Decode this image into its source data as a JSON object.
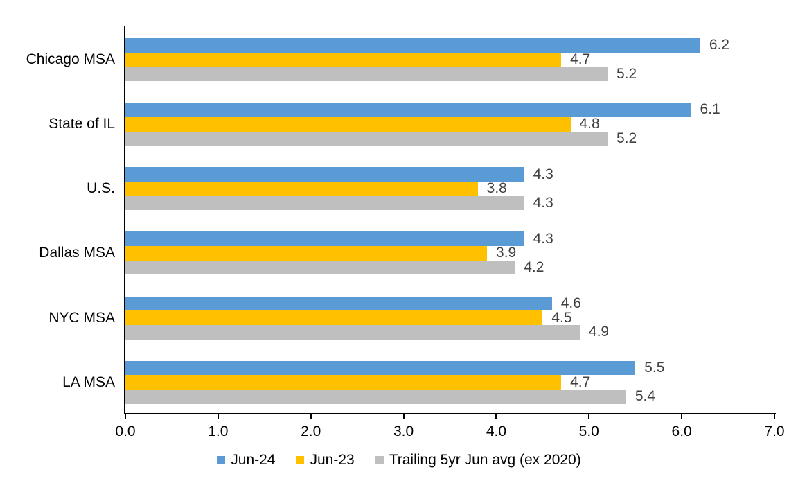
{
  "chart_data": {
    "type": "bar",
    "orientation": "horizontal",
    "title": "",
    "xlabel": "",
    "ylabel": "",
    "grid": false,
    "legend_position": "bottom",
    "data_labels": true,
    "xlim": [
      0.0,
      7.0
    ],
    "x_ticks": [
      "0.0",
      "1.0",
      "2.0",
      "3.0",
      "4.0",
      "5.0",
      "6.0",
      "7.0"
    ],
    "categories": [
      "Chicago MSA",
      "State of IL",
      "U.S.",
      "Dallas MSA",
      "NYC MSA",
      "LA MSA"
    ],
    "series": [
      {
        "name": "Jun-24",
        "color": "#5B9BD5",
        "values": [
          6.2,
          6.1,
          4.3,
          4.3,
          4.6,
          5.5
        ]
      },
      {
        "name": "Jun-23",
        "color": "#FFC000",
        "values": [
          4.7,
          4.8,
          3.8,
          3.9,
          4.5,
          4.7
        ]
      },
      {
        "name": "Trailing 5yr Jun avg (ex 2020)",
        "color": "#BFBFBF",
        "values": [
          5.2,
          5.2,
          4.3,
          4.2,
          4.9,
          5.4
        ]
      }
    ]
  },
  "colors": {
    "background": "#FFFFFF",
    "axis": "#000000",
    "data_label": "#404040",
    "tick_label": "#000000",
    "series_blue": "#5B9BD5",
    "series_yellow": "#FFC000",
    "series_gray": "#BFBFBF"
  }
}
